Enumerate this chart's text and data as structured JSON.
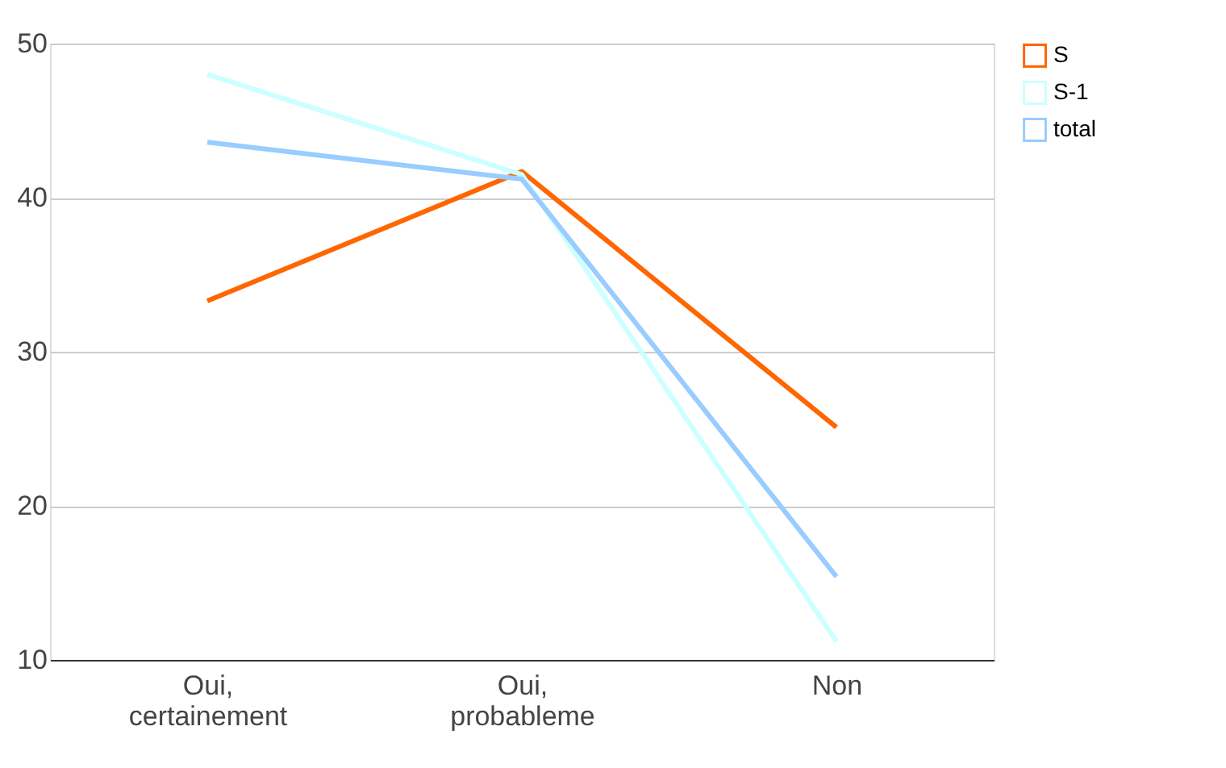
{
  "chart_data": {
    "type": "line",
    "categories": [
      "Oui,\ncertainement",
      "Oui,\nprobableme",
      "Non"
    ],
    "series": [
      {
        "name": "S",
        "color": "#ff6600",
        "values": [
          33.3,
          41.7,
          25.1
        ]
      },
      {
        "name": "S-1",
        "color": "#ccffff",
        "values": [
          48.0,
          41.5,
          11.2
        ]
      },
      {
        "name": "total",
        "color": "#99ccff",
        "values": [
          43.6,
          41.2,
          15.4
        ]
      }
    ],
    "ylim": [
      10,
      50
    ],
    "yticks": [
      10,
      20,
      30,
      40,
      50
    ],
    "grid": "y",
    "legend": "top right",
    "marker": "none",
    "line_style": "solid"
  }
}
